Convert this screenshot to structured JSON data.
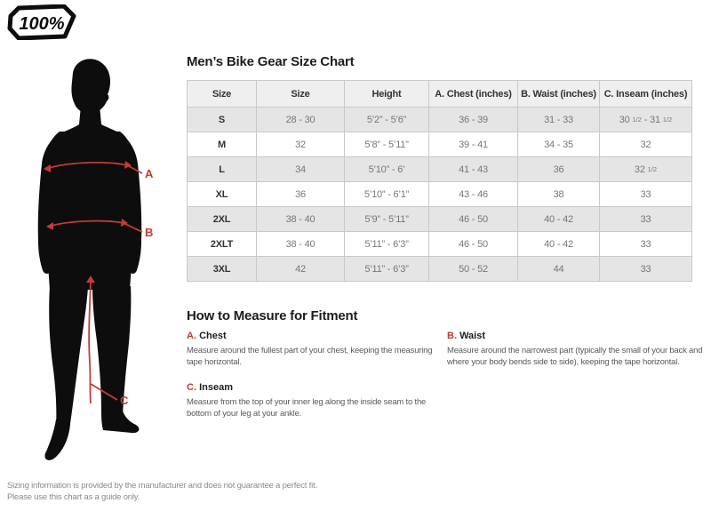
{
  "brand": {
    "logo_text": "100%"
  },
  "page": {
    "title": "Men’s Bike Gear Size Chart",
    "measure_heading": "How to Measure for Fitment",
    "footer_line1": "Sizing information is provided by the manufacturer and does not guarantee a perfect fit.",
    "footer_line2": "Please use this chart as a guide only."
  },
  "colors": {
    "accent_red": "#c43a36",
    "silhouette_black": "#0d0d0d",
    "row_alt_gray": "#e5e5e5",
    "header_gray": "#efefef",
    "table_border": "#c9c9c9"
  },
  "size_chart": {
    "columns": [
      "Size",
      "Size",
      "Height",
      "A. Chest (inches)",
      "B. Waist (inches)",
      "C. Inseam (inches)"
    ],
    "rows": [
      [
        "S",
        "28 - 30",
        "5’2” - 5’6”",
        "36 - 39",
        "31 - 33",
        "30 1/2 - 31 1/2"
      ],
      [
        "M",
        "32",
        "5’8” - 5’11”",
        "39 - 41",
        "34 - 35",
        "32"
      ],
      [
        "L",
        "34",
        "5’10” - 6’",
        "41 - 43",
        "36",
        "32 1/2"
      ],
      [
        "XL",
        "36",
        "5’10” - 6’1”",
        "43 - 46",
        "38",
        "33"
      ],
      [
        "2XL",
        "38 - 40",
        "5’9” - 5’11”",
        "46 - 50",
        "40 - 42",
        "33"
      ],
      [
        "2XLT",
        "38 - 40",
        "5’11” - 6’3”",
        "46 - 50",
        "40 - 42",
        "33"
      ],
      [
        "3XL",
        "42",
        "5’11” - 6’3”",
        "50 - 52",
        "44",
        "33"
      ]
    ]
  },
  "measure_sections": [
    {
      "letter": "A.",
      "name": "Chest",
      "text": "Measure around the fullest part of your chest, keeping the measuring tape horizontal."
    },
    {
      "letter": "B.",
      "name": "Waist",
      "text": "Measure around the narrowest part (typically the small of your back and where your body bends side to side), keeping the tape horizontal."
    },
    {
      "letter": "C.",
      "name": "Inseam",
      "text": "Measure from the top of your inner leg along the inside seam to the bottom of your leg at your ankle."
    }
  ],
  "figure": {
    "labels": [
      "A",
      "B",
      "C"
    ]
  }
}
